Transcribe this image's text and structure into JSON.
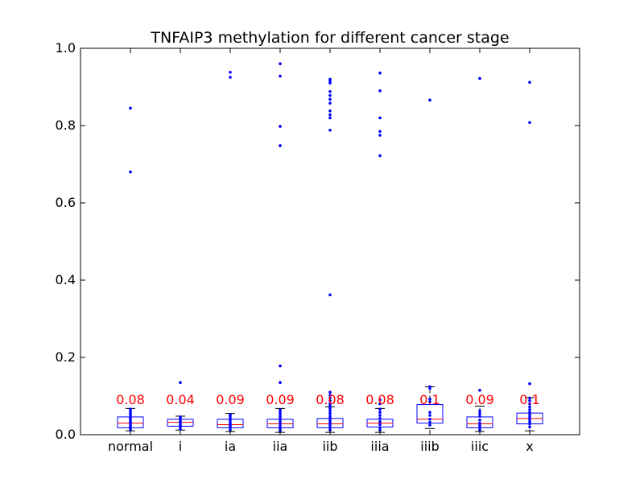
{
  "chart_data": {
    "type": "box",
    "title": "TNFAIP3 methylation for different cancer stage",
    "xlabel": "",
    "ylabel": "",
    "ylim": [
      0.0,
      1.0
    ],
    "yticks": [
      "0.0",
      "0.2",
      "0.4",
      "0.6",
      "0.8",
      "1.0"
    ],
    "categories": [
      "normal",
      "i",
      "ia",
      "iia",
      "iib",
      "iiia",
      "iiib",
      "iiic",
      "x"
    ],
    "annotations": [
      "0.08",
      "0.04",
      "0.09",
      "0.09",
      "0.08",
      "0.08",
      "0.1",
      "0.09",
      "0.1"
    ],
    "colors": {
      "box": "#0000ff",
      "median": "#ff0000",
      "points": "#0000ff",
      "annotation": "#ff0000",
      "whisker": "#000000"
    },
    "boxes": [
      {
        "q1": 0.018,
        "median": 0.03,
        "q3": 0.046,
        "whisker_low": 0.01,
        "whisker_high": 0.068,
        "points": [
          0.845,
          0.68,
          0.012,
          0.016,
          0.02,
          0.024,
          0.028,
          0.032,
          0.036,
          0.04,
          0.044,
          0.05,
          0.055,
          0.06,
          0.066
        ]
      },
      {
        "q1": 0.022,
        "median": 0.032,
        "q3": 0.04,
        "whisker_low": 0.012,
        "whisker_high": 0.048,
        "points": [
          0.135,
          0.014,
          0.02,
          0.025,
          0.03,
          0.035,
          0.04,
          0.044,
          0.046
        ]
      },
      {
        "q1": 0.018,
        "median": 0.026,
        "q3": 0.04,
        "whisker_low": 0.008,
        "whisker_high": 0.055,
        "points": [
          0.938,
          0.925,
          0.012,
          0.018,
          0.022,
          0.026,
          0.03,
          0.036,
          0.042,
          0.048,
          0.052
        ]
      },
      {
        "q1": 0.018,
        "median": 0.028,
        "q3": 0.04,
        "whisker_low": 0.006,
        "whisker_high": 0.068,
        "points": [
          0.96,
          0.928,
          0.798,
          0.748,
          0.178,
          0.135,
          0.01,
          0.016,
          0.022,
          0.028,
          0.034,
          0.04,
          0.046,
          0.052,
          0.058,
          0.064
        ]
      },
      {
        "q1": 0.018,
        "median": 0.028,
        "q3": 0.042,
        "whisker_low": 0.006,
        "whisker_high": 0.072,
        "points": [
          0.92,
          0.915,
          0.91,
          0.888,
          0.878,
          0.868,
          0.858,
          0.838,
          0.828,
          0.82,
          0.788,
          0.362,
          0.11,
          0.102,
          0.095,
          0.088,
          0.08,
          0.074,
          0.068,
          0.062,
          0.055,
          0.048,
          0.042,
          0.036,
          0.03,
          0.024,
          0.018,
          0.012
        ]
      },
      {
        "q1": 0.02,
        "median": 0.03,
        "q3": 0.04,
        "whisker_low": 0.006,
        "whisker_high": 0.068,
        "points": [
          0.936,
          0.89,
          0.82,
          0.785,
          0.775,
          0.722,
          0.09,
          0.08,
          0.066,
          0.058,
          0.05,
          0.042,
          0.034,
          0.026,
          0.018,
          0.012
        ]
      },
      {
        "q1": 0.03,
        "median": 0.04,
        "q3": 0.078,
        "whisker_low": 0.016,
        "whisker_high": 0.124,
        "points": [
          0.866,
          0.124,
          0.12,
          0.092,
          0.085,
          0.058,
          0.05,
          0.04,
          0.032,
          0.025
        ]
      },
      {
        "q1": 0.018,
        "median": 0.028,
        "q3": 0.046,
        "whisker_low": 0.008,
        "whisker_high": 0.074,
        "points": [
          0.922,
          0.115,
          0.062,
          0.055,
          0.048,
          0.038,
          0.03,
          0.024,
          0.018,
          0.012
        ]
      },
      {
        "q1": 0.028,
        "median": 0.042,
        "q3": 0.056,
        "whisker_low": 0.01,
        "whisker_high": 0.096,
        "points": [
          0.912,
          0.808,
          0.132,
          0.095,
          0.088,
          0.08,
          0.072,
          0.065,
          0.058,
          0.052,
          0.046,
          0.04,
          0.034,
          0.028,
          0.02
        ]
      }
    ]
  }
}
